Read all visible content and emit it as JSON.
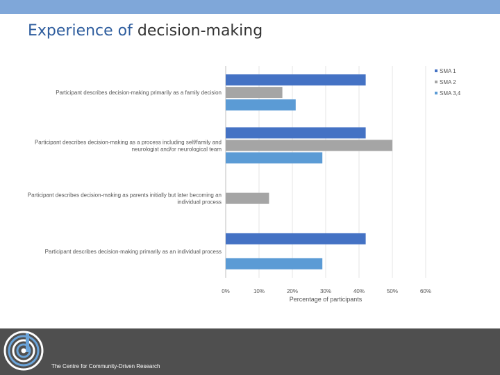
{
  "slide": {
    "title_part1": "Experience of",
    "title_part2": "decision-making",
    "footer_text": "The Centre for Community-Driven Research"
  },
  "colors": {
    "top_band": "#7fa7d9",
    "footer_bg": "#4f4f4f"
  },
  "chart_data": {
    "type": "bar",
    "orientation": "horizontal",
    "categories": [
      [
        "Participant describes decision-making primarily as a family decision"
      ],
      [
        "Participant describes decision-making as a process including self/family and",
        "neurologist and/or neurological team"
      ],
      [
        "Participant describes decision-making as parents initially but later becoming an",
        "individual process"
      ],
      [
        "Participant describes decision-making primarily as an individual process"
      ]
    ],
    "series": [
      {
        "name": "SMA 1",
        "color": "#4472c4",
        "values": [
          42,
          42,
          null,
          42
        ]
      },
      {
        "name": "SMA 2",
        "color": "#a5a5a5",
        "values": [
          17,
          50,
          13,
          null
        ]
      },
      {
        "name": "SMA 3,4",
        "color": "#5b9bd5",
        "values": [
          21,
          29,
          null,
          29
        ]
      }
    ],
    "xlim": [
      0,
      60
    ],
    "xticks": [
      0,
      10,
      20,
      30,
      40,
      50,
      60
    ],
    "tick_labels": [
      "0%",
      "10%",
      "20%",
      "30%",
      "40%",
      "50%",
      "60%"
    ],
    "xlabel": "Percentage of participants",
    "grid": true,
    "legend_position": "top-right"
  }
}
